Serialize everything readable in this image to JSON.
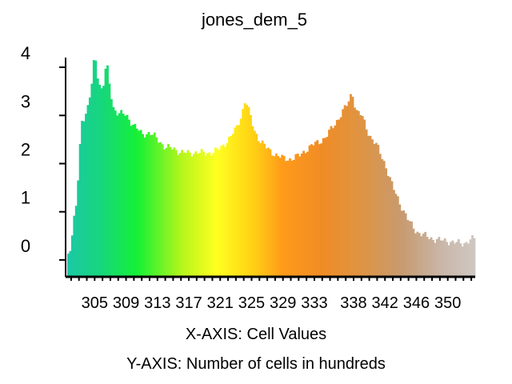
{
  "chart_data": {
    "type": "bar",
    "title": "jones_dem_5",
    "xlabel": "X-AXIS: Cell Values",
    "ylabel": "Y-AXIS: Number of cells in hundreds",
    "x_range": [
      301.5,
      353.5
    ],
    "ylim": [
      -0.35,
      4.4
    ],
    "x_ticks": [
      305,
      309,
      313,
      317,
      321,
      325,
      329,
      333,
      338,
      342,
      346,
      350
    ],
    "y_ticks": [
      0,
      1,
      2,
      3,
      4
    ],
    "grid": false,
    "legend": "none",
    "bar_width": 0.25,
    "color_stops": [
      {
        "x": 301.5,
        "color": "#1cc8a6"
      },
      {
        "x": 306,
        "color": "#16d77a"
      },
      {
        "x": 310.5,
        "color": "#15f135"
      },
      {
        "x": 316,
        "color": "#b4f51c"
      },
      {
        "x": 320.5,
        "color": "#ffff20"
      },
      {
        "x": 325,
        "color": "#ffd315"
      },
      {
        "x": 329,
        "color": "#ff9a1a"
      },
      {
        "x": 334,
        "color": "#f08c25"
      },
      {
        "x": 339,
        "color": "#df9444"
      },
      {
        "x": 344,
        "color": "#c79a6e"
      },
      {
        "x": 349,
        "color": "#c9b5a6"
      },
      {
        "x": 353.5,
        "color": "#cfc8c3"
      }
    ],
    "anchors": [
      [
        301.5,
        0.1
      ],
      [
        302.0,
        0.3
      ],
      [
        302.3,
        0.75
      ],
      [
        302.7,
        1.2
      ],
      [
        303.0,
        2.0
      ],
      [
        303.3,
        2.9
      ],
      [
        303.8,
        3.0
      ],
      [
        304.2,
        3.2
      ],
      [
        304.6,
        3.6
      ],
      [
        305.0,
        4.3
      ],
      [
        305.5,
        3.7
      ],
      [
        306.0,
        3.5
      ],
      [
        306.5,
        4.1
      ],
      [
        307.0,
        3.5
      ],
      [
        307.4,
        3.15
      ],
      [
        308.0,
        3.05
      ],
      [
        309.0,
        3.0
      ],
      [
        310.0,
        2.8
      ],
      [
        311.0,
        2.6
      ],
      [
        312.0,
        2.65
      ],
      [
        313.0,
        2.5
      ],
      [
        314.0,
        2.35
      ],
      [
        315.0,
        2.3
      ],
      [
        316.0,
        2.25
      ],
      [
        317.0,
        2.2
      ],
      [
        318.0,
        2.25
      ],
      [
        319.0,
        2.2
      ],
      [
        320.0,
        2.25
      ],
      [
        321.0,
        2.3
      ],
      [
        322.0,
        2.5
      ],
      [
        323.0,
        2.7
      ],
      [
        323.7,
        3.0
      ],
      [
        324.2,
        3.35
      ],
      [
        324.8,
        3.0
      ],
      [
        325.3,
        2.7
      ],
      [
        326.0,
        2.5
      ],
      [
        327.0,
        2.3
      ],
      [
        328.0,
        2.2
      ],
      [
        329.0,
        2.1
      ],
      [
        330.0,
        2.1
      ],
      [
        331.0,
        2.15
      ],
      [
        332.0,
        2.3
      ],
      [
        333.0,
        2.4
      ],
      [
        334.5,
        2.55
      ],
      [
        335.5,
        2.8
      ],
      [
        336.5,
        3.05
      ],
      [
        337.3,
        3.25
      ],
      [
        337.8,
        3.5
      ],
      [
        338.3,
        3.1
      ],
      [
        339.0,
        3.0
      ],
      [
        340.0,
        2.6
      ],
      [
        341.0,
        2.35
      ],
      [
        342.0,
        2.0
      ],
      [
        343.0,
        1.5
      ],
      [
        344.0,
        1.15
      ],
      [
        345.0,
        0.8
      ],
      [
        346.0,
        0.6
      ],
      [
        347.0,
        0.5
      ],
      [
        348.0,
        0.45
      ],
      [
        349.0,
        0.4
      ],
      [
        350.0,
        0.4
      ],
      [
        351.0,
        0.35
      ],
      [
        352.0,
        0.35
      ],
      [
        353.5,
        0.45
      ]
    ]
  }
}
